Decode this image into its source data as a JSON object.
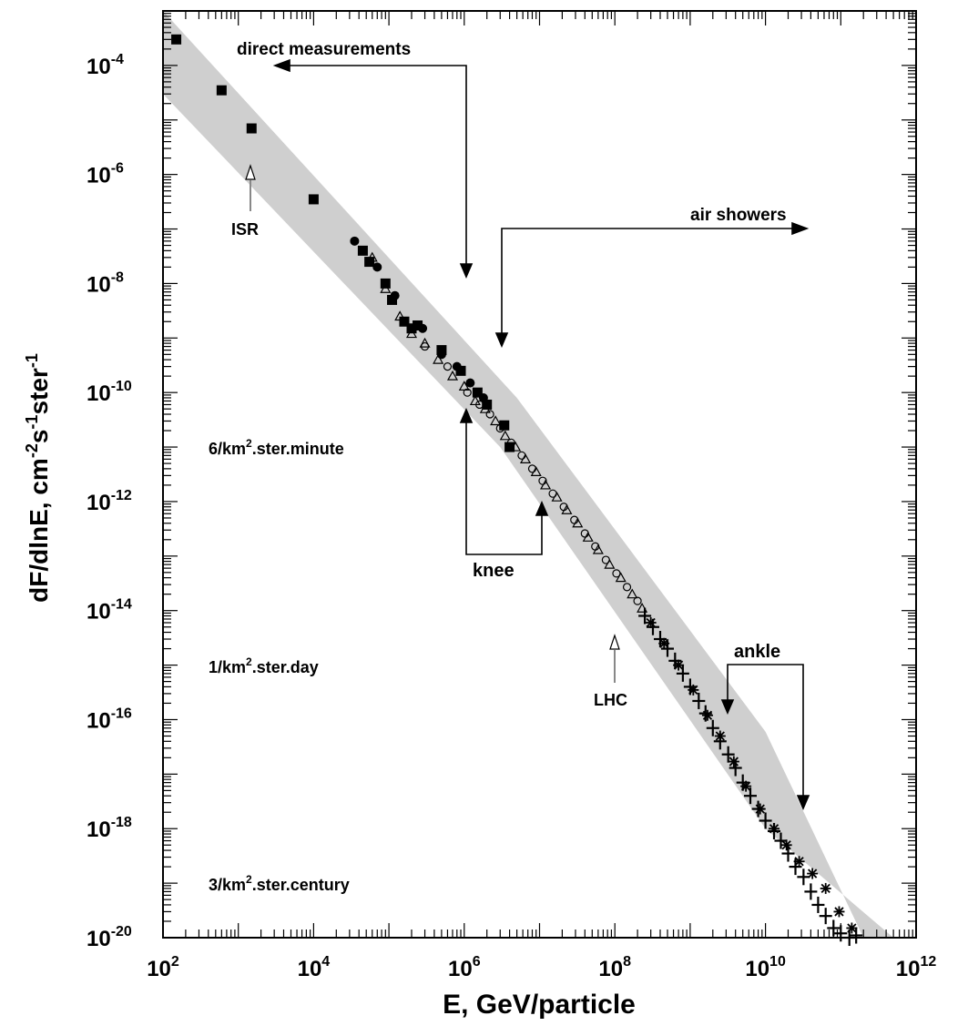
{
  "chart_data": {
    "type": "scatter",
    "xlabel": "E, GeV/particle",
    "ylabel": {
      "base": "dF/dlnE, cm",
      "e1": "-2",
      "mid1": "s",
      "e2": "-1",
      "mid2": "ster",
      "e3": "-1"
    },
    "xscale": "log",
    "yscale": "log",
    "xlim": [
      100.0,
      1000000000000.0
    ],
    "ylim": [
      1e-20,
      0.001
    ],
    "x_ticks": [
      {
        "value": 100.0,
        "base": "10",
        "exp": "2"
      },
      {
        "value": 10000.0,
        "base": "10",
        "exp": "4"
      },
      {
        "value": 1000000.0,
        "base": "10",
        "exp": "6"
      },
      {
        "value": 100000000.0,
        "base": "10",
        "exp": "8"
      },
      {
        "value": 10000000000.0,
        "base": "10",
        "exp": "10"
      },
      {
        "value": 1000000000000.0,
        "base": "10",
        "exp": "12"
      }
    ],
    "y_ticks": [
      {
        "value": 0.0001,
        "base": "10",
        "exp": "-4"
      },
      {
        "value": 1e-06,
        "base": "10",
        "exp": "-6"
      },
      {
        "value": 1e-08,
        "base": "10",
        "exp": "-8"
      },
      {
        "value": 1e-10,
        "base": "10",
        "exp": "-10"
      },
      {
        "value": 1e-12,
        "base": "10",
        "exp": "-12"
      },
      {
        "value": 1e-14,
        "base": "10",
        "exp": "-14"
      },
      {
        "value": 1e-16,
        "base": "10",
        "exp": "-16"
      },
      {
        "value": 1e-18,
        "base": "10",
        "exp": "-18"
      },
      {
        "value": 1e-20,
        "base": "10",
        "exp": "-20"
      }
    ],
    "band": {
      "upper": [
        [
          100.0,
          0.001
        ],
        [
          5000000.0,
          8e-11
        ],
        [
          10000000000.0,
          6e-17
        ],
        [
          200000000000.0,
          1e-20
        ]
      ],
      "lower": [
        [
          500000000000.0,
          1e-20
        ],
        [
          10000000000.0,
          1e-18
        ],
        [
          3000000.0,
          1e-11
        ],
        [
          100.0,
          3e-05
        ]
      ]
    },
    "series": [
      {
        "marker": "square",
        "points": [
          [
            150,
            0.0003
          ],
          [
            600,
            3.5e-05
          ],
          [
            1500,
            7e-06
          ],
          [
            10000.0,
            3.5e-07
          ],
          [
            45000.0,
            4e-08
          ],
          [
            55000.0,
            2.5e-08
          ],
          [
            90000.0,
            1e-08
          ],
          [
            110000.0,
            5e-09
          ],
          [
            160000.0,
            2e-09
          ],
          [
            200000.0,
            1.5e-09
          ],
          [
            240000.0,
            1.7e-09
          ],
          [
            500000.0,
            6e-10
          ],
          [
            900000.0,
            2.5e-10
          ],
          [
            1500000.0,
            1e-10
          ],
          [
            2000000.0,
            6e-11
          ],
          [
            3400000.0,
            2.5e-11
          ],
          [
            4000000.0,
            1e-11
          ]
        ]
      },
      {
        "marker": "circle",
        "points": [
          [
            35000.0,
            6e-08
          ],
          [
            70000.0,
            2e-08
          ],
          [
            120000.0,
            6e-09
          ],
          [
            280000.0,
            1.5e-09
          ],
          [
            500000.0,
            5e-10
          ],
          [
            800000.0,
            3e-10
          ],
          [
            1200000.0,
            1.5e-10
          ],
          [
            1800000.0,
            8e-11
          ]
        ]
      },
      {
        "marker": "triangle",
        "points": [
          [
            60000.0,
            3e-08
          ],
          [
            90000.0,
            8e-09
          ],
          [
            140000.0,
            2.5e-09
          ],
          [
            200000.0,
            1.2e-09
          ],
          [
            300000.0,
            8e-10
          ],
          [
            450000.0,
            4e-10
          ],
          [
            700000.0,
            2e-10
          ],
          [
            1000000.0,
            1.3e-10
          ],
          [
            1400000.0,
            7e-11
          ],
          [
            1900000.0,
            5e-11
          ],
          [
            2600000.0,
            3e-11
          ],
          [
            3500000.0,
            1.6e-11
          ],
          [
            4800000.0,
            1e-11
          ],
          [
            6500000.0,
            6e-12
          ],
          [
            9000000.0,
            3.5e-12
          ],
          [
            12000000.0,
            2e-12
          ],
          [
            17000000.0,
            1.2e-12
          ],
          [
            23000000.0,
            7e-13
          ],
          [
            32000000.0,
            4e-13
          ],
          [
            44000000.0,
            2.2e-13
          ],
          [
            60000000.0,
            1.3e-13
          ],
          [
            85000000.0,
            7e-14
          ],
          [
            120000000.0,
            4e-14
          ],
          [
            170000000.0,
            2e-14
          ],
          [
            230000000.0,
            1.1e-14
          ]
        ]
      },
      {
        "marker": "open-circle",
        "points": [
          [
            300000.0,
            7e-10
          ],
          [
            600000.0,
            3e-10
          ],
          [
            1100000.0,
            1e-10
          ],
          [
            1600000.0,
            6e-11
          ],
          [
            2200000.0,
            4e-11
          ],
          [
            3000000.0,
            2.2e-11
          ],
          [
            4200000.0,
            1.2e-11
          ],
          [
            5800000.0,
            7e-12
          ],
          [
            8000000.0,
            4e-12
          ],
          [
            11000000.0,
            2.4e-12
          ],
          [
            15000000.0,
            1.4e-12
          ],
          [
            21000000.0,
            8e-13
          ],
          [
            29000000.0,
            4.6e-13
          ],
          [
            40000000.0,
            2.6e-13
          ],
          [
            55000000.0,
            1.5e-13
          ],
          [
            76000000.0,
            8.5e-14
          ],
          [
            105000000.0,
            4.8e-14
          ],
          [
            145000000.0,
            2.7e-14
          ],
          [
            200000000.0,
            1.5e-14
          ]
        ]
      },
      {
        "marker": "cross",
        "points": [
          [
            250000000.0,
            8e-15
          ],
          [
            320000000.0,
            5e-15
          ],
          [
            400000000.0,
            3e-15
          ],
          [
            500000000.0,
            2e-15
          ],
          [
            630000000.0,
            1.2e-15
          ],
          [
            800000000.0,
            7e-16
          ],
          [
            1000000000.0,
            4e-16
          ],
          [
            1300000000.0,
            2.2e-16
          ],
          [
            1600000000.0,
            1.3e-16
          ],
          [
            2000000000.0,
            7e-17
          ],
          [
            2500000000.0,
            4e-17
          ],
          [
            3200000000.0,
            2.3e-17
          ],
          [
            4000000000.0,
            1.3e-17
          ],
          [
            5000000000.0,
            7e-18
          ],
          [
            6300000000.0,
            4e-18
          ],
          [
            8000000000.0,
            2.3e-18
          ],
          [
            10000000000.0,
            1.4e-18
          ],
          [
            13000000000.0,
            9e-19
          ],
          [
            16000000000.0,
            6e-19
          ],
          [
            20000000000.0,
            3.5e-19
          ],
          [
            25000000000.0,
            2e-19
          ],
          [
            32000000000.0,
            1.3e-19
          ],
          [
            40000000000.0,
            7e-20
          ],
          [
            50000000000.0,
            4e-20
          ],
          [
            63000000000.0,
            2.5e-20
          ],
          [
            80000000000.0,
            1.5e-20
          ],
          [
            100000000000.0,
            1.2e-20
          ],
          [
            130000000000.0,
            1e-20
          ],
          [
            160000000000.0,
            1.1e-20
          ]
        ]
      },
      {
        "marker": "star",
        "points": [
          [
            300000000.0,
            6e-15
          ],
          [
            450000000.0,
            2.5e-15
          ],
          [
            700000000.0,
            1e-15
          ],
          [
            1100000000.0,
            3.5e-16
          ],
          [
            1700000000.0,
            1.2e-16
          ],
          [
            2500000000.0,
            5e-17
          ],
          [
            3800000000.0,
            1.7e-17
          ],
          [
            5500000000.0,
            6e-18
          ],
          [
            8500000000.0,
            2.3e-18
          ],
          [
            13000000000.0,
            1e-18
          ],
          [
            19000000000.0,
            5e-19
          ],
          [
            28000000000.0,
            2.5e-19
          ],
          [
            42000000000.0,
            1.5e-19
          ],
          [
            63000000000.0,
            8e-20
          ],
          [
            95000000000.0,
            3e-20
          ],
          [
            140000000000.0,
            1.5e-20
          ]
        ]
      }
    ],
    "annotations": {
      "direct": "direct measurements",
      "air": "air showers",
      "knee": "knee",
      "ankle": "ankle",
      "isr": "ISR",
      "lhc": "LHC",
      "rate1": {
        "pre": "6/km",
        "sup": "2",
        "post": ".ster.minute"
      },
      "rate2": {
        "pre": "1/km",
        "sup": "2",
        "post": ".ster.day"
      },
      "rate3": {
        "pre": "3/km",
        "sup": "2",
        "post": ".ster.century"
      }
    }
  }
}
